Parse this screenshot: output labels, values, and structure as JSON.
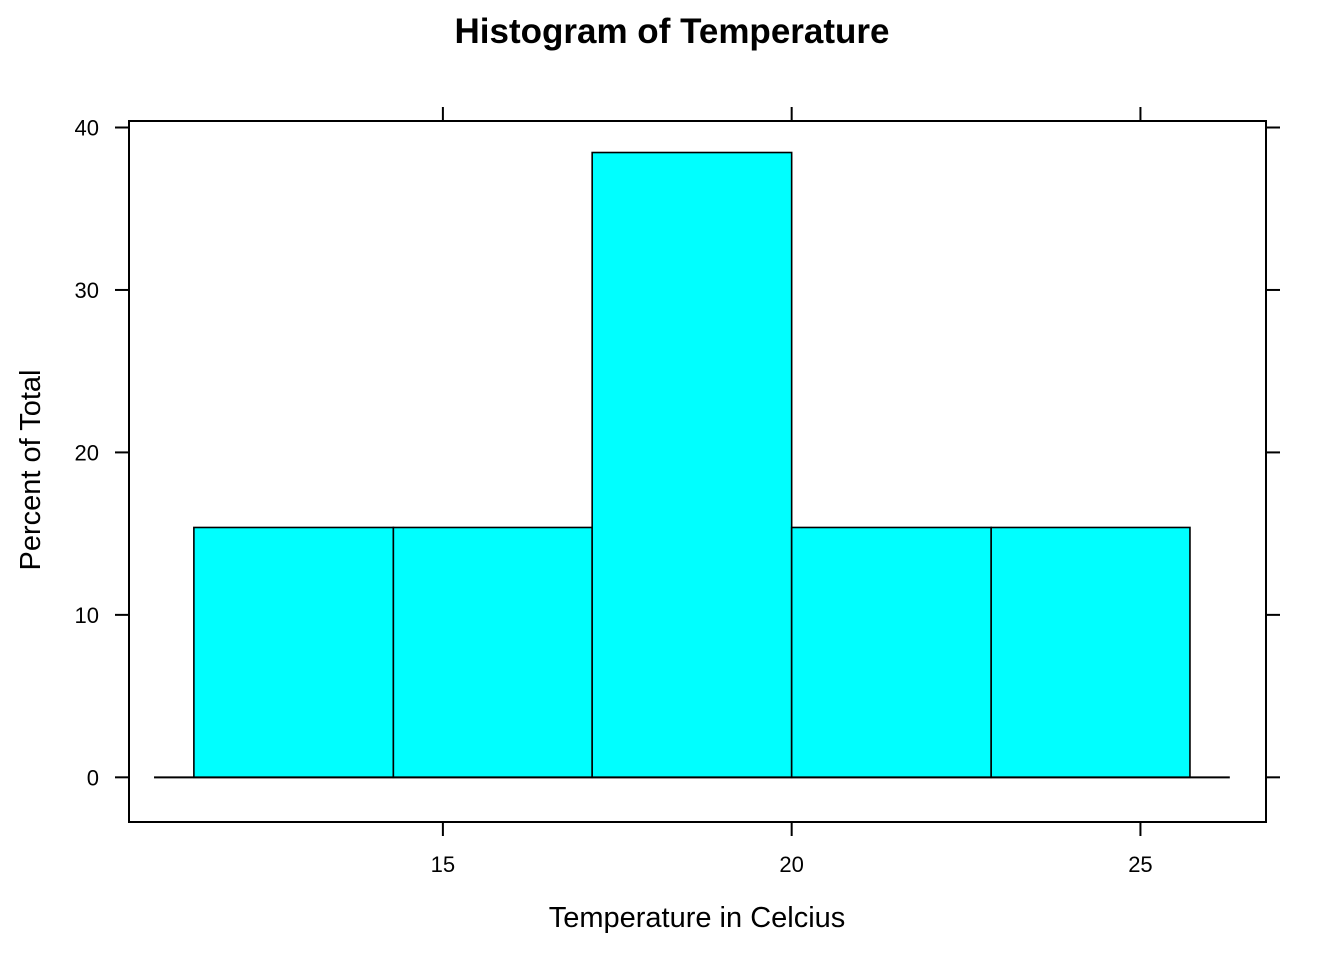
{
  "chart_data": {
    "type": "bar",
    "title": "Histogram of Temperature",
    "xlabel": "Temperature in Celcius",
    "ylabel": "Percent of Total",
    "bin_edges": [
      11.43,
      14.29,
      17.14,
      20.0,
      22.86,
      25.71
    ],
    "values": [
      15.38,
      15.38,
      38.46,
      15.38,
      15.38
    ],
    "xlim": [
      10.5,
      26.8
    ],
    "ylim": [
      -2.75,
      40.4
    ],
    "x_ticks": [
      15,
      20,
      25
    ],
    "y_ticks": [
      0,
      10,
      20,
      30,
      40
    ],
    "fill_color": "#00FFFF",
    "grid": false,
    "legend": "none"
  }
}
